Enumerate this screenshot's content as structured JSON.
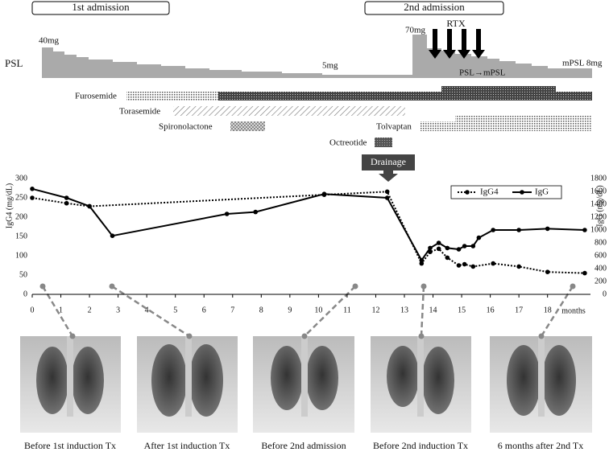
{
  "admissions": [
    "1st admission",
    "2nd admission"
  ],
  "psl": {
    "label": "PSL",
    "annotations": [
      "40mg",
      "5mg",
      "70mg",
      "mPSL 8mg"
    ],
    "rtx": "RTX",
    "switch": "PSL→mPSL"
  },
  "drugs": [
    "Furosemide",
    "Torasemide",
    "Spironolactone",
    "Tolvaptan",
    "Octreotide"
  ],
  "drainage": "Drainage",
  "chart_data": {
    "type": "line",
    "xlabel": "months",
    "ylabel": "IgG4 (mg/dL)",
    "y2label": "IgG (mg/dL)",
    "xlim": [
      0,
      19.5
    ],
    "xticks": [
      0,
      1,
      2,
      3,
      4,
      5,
      6,
      7,
      8,
      9,
      10,
      11,
      12,
      13,
      14,
      15,
      16,
      17,
      18
    ],
    "ylim": [
      0,
      300
    ],
    "yticks": [
      0,
      50,
      100,
      150,
      200,
      250,
      300
    ],
    "y2lim": [
      0,
      1800
    ],
    "y2ticks": [
      0,
      200,
      400,
      600,
      800,
      1000,
      1200,
      1400,
      1600,
      1800
    ],
    "legend": "upper right",
    "series": [
      {
        "name": "IgG4",
        "color": "#000000",
        "line_style": "dotted",
        "x": [
          0,
          1.2,
          2.0,
          10.2,
          12.4,
          13.6,
          13.9,
          14.2,
          14.5,
          14.9,
          15.1,
          15.4,
          16.1,
          17.0,
          18.0,
          19.3
        ],
        "values": [
          250,
          236,
          228,
          258,
          266,
          80,
          110,
          118,
          95,
          75,
          78,
          72,
          80,
          72,
          58,
          55
        ]
      },
      {
        "name": "IgG",
        "color": "#000000",
        "line_style": "solid",
        "axis": "y2",
        "x": [
          0,
          1.2,
          2.0,
          2.8,
          6.8,
          7.8,
          10.2,
          12.4,
          13.6,
          13.9,
          14.2,
          14.5,
          14.9,
          15.1,
          15.4,
          15.6,
          16.1,
          17.0,
          18.0,
          19.3
        ],
        "values": [
          1640,
          1500,
          1370,
          910,
          1250,
          1280,
          1560,
          1500,
          530,
          720,
          800,
          720,
          700,
          750,
          750,
          880,
          1000,
          1000,
          1020,
          1000
        ]
      }
    ]
  },
  "xrays": [
    "Before 1st induction Tx",
    "After 1st induction Tx",
    "Before  2nd admission",
    "Before  2nd induction Tx",
    "6 months after 2nd Tx"
  ]
}
